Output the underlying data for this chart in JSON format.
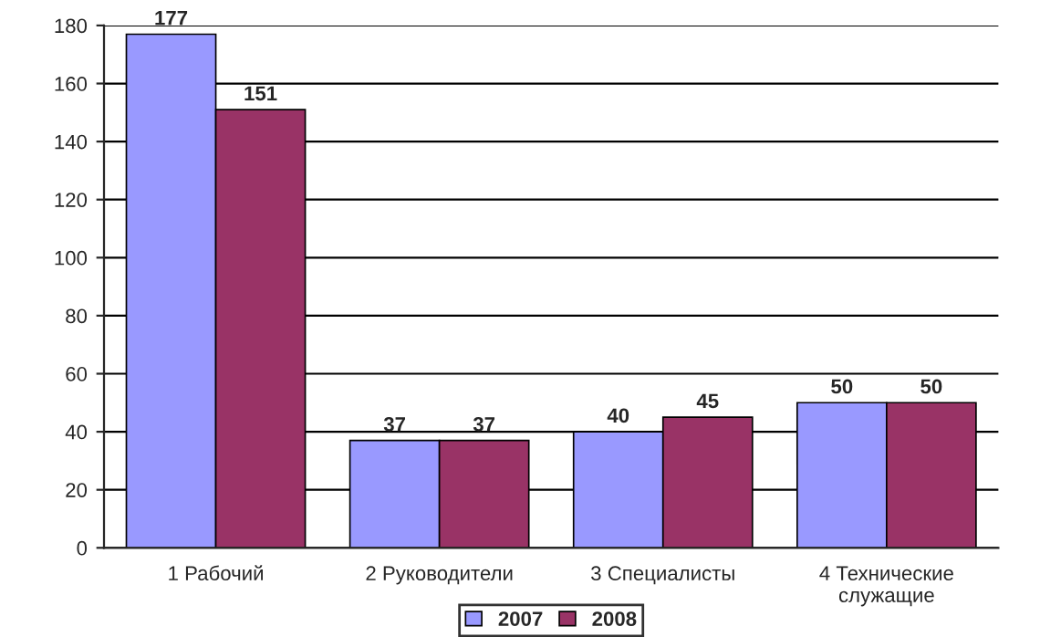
{
  "chart_data": {
    "type": "bar",
    "categories": [
      "1 Рабочий",
      "2 Руководители",
      "3 Специалисты",
      "4 Технические\nслужащие"
    ],
    "series": [
      {
        "name": "2007",
        "color": "#9999ff",
        "values": [
          177,
          37,
          40,
          50
        ]
      },
      {
        "name": "2008",
        "color": "#993366",
        "values": [
          151,
          37,
          45,
          50
        ]
      }
    ],
    "ylim": [
      0,
      180
    ],
    "yticks": [
      0,
      20,
      40,
      60,
      80,
      100,
      120,
      140,
      160,
      180
    ],
    "grid": "y",
    "legend": "bottom",
    "data_labels": true
  }
}
